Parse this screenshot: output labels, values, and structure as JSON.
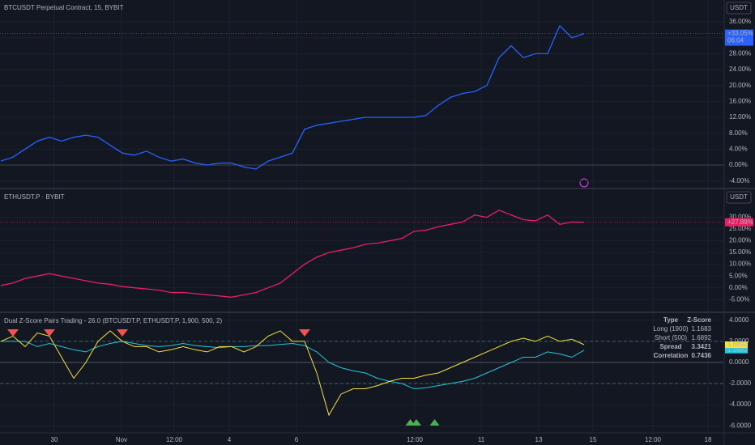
{
  "chart_data": [
    {
      "type": "line",
      "title": "BTCUSDT Perpetual Contract, 15, BYBIT",
      "currency": "USDT",
      "color": "#2962ff",
      "values": [
        1,
        2,
        4,
        6,
        7,
        6,
        7,
        7.5,
        7,
        5,
        3,
        2.5,
        3.5,
        2,
        1,
        1.5,
        0.5,
        0,
        0.5,
        0.5,
        -0.5,
        -1,
        1,
        2,
        3,
        9,
        10,
        10.5,
        11,
        11.5,
        12,
        12,
        12,
        12,
        12,
        12.5,
        15,
        17,
        18,
        18.5,
        20,
        27,
        30,
        27,
        28,
        28,
        35,
        32,
        33.05
      ],
      "last_label": "+33.05%",
      "countdown": "06:04",
      "ylim": [
        -5.7,
        41.5
      ],
      "yticks": [
        {
          "value": 36,
          "label": "36.00%"
        },
        {
          "value": 32,
          "label": "32.00%"
        },
        {
          "value": 28,
          "label": "28.00%"
        },
        {
          "value": 24,
          "label": "24.00%"
        },
        {
          "value": 20,
          "label": "20.00%"
        },
        {
          "value": 16,
          "label": "16.00%"
        },
        {
          "value": 12,
          "label": "12.00%"
        },
        {
          "value": 8,
          "label": "8.00%"
        },
        {
          "value": 4,
          "label": "4.00%"
        },
        {
          "value": 0,
          "label": "0.00%"
        },
        {
          "value": -4,
          "label": "-4.00%"
        }
      ],
      "grid": true
    },
    {
      "type": "line",
      "title": "ETHUSDT.P · BYBIT",
      "currency": "USDT",
      "color": "#e91e63",
      "values": [
        1,
        2,
        4,
        5,
        6,
        5,
        4,
        3,
        2,
        1.5,
        0.5,
        0,
        -0.5,
        -1,
        -2,
        -2,
        -2.5,
        -3,
        -3.5,
        -4,
        -3,
        -2,
        0,
        2,
        6,
        10,
        13,
        15,
        16,
        17,
        18.5,
        19,
        20,
        21,
        24,
        24.5,
        26,
        27,
        28,
        31,
        30,
        33,
        31,
        29,
        28.5,
        31,
        27,
        28,
        27.89
      ],
      "last_label": "+27.89%",
      "ylim": [
        -10.1,
        41.9
      ],
      "yticks": [
        {
          "value": 30,
          "label": "30.00%"
        },
        {
          "value": 25,
          "label": "25.00%"
        },
        {
          "value": 20,
          "label": "20.00%"
        },
        {
          "value": 15,
          "label": "15.00%"
        },
        {
          "value": 10,
          "label": "10.00%"
        },
        {
          "value": 5,
          "label": "5.00%"
        },
        {
          "value": 0,
          "label": "0.00%"
        },
        {
          "value": -5,
          "label": "-5.00%"
        }
      ],
      "grid": true
    },
    {
      "type": "zscore",
      "title": "Dual Z-Score Pairs Trading - 26.0 (BTCUSDT.P, ETHUSDT.P, 1,900, 500, 2)",
      "series": [
        {
          "name": "Long (1900)",
          "color": "#26c6da",
          "values": [
            2,
            2,
            2,
            1.5,
            1.8,
            1.5,
            1.2,
            1.0,
            1.5,
            1.8,
            2.0,
            1.8,
            1.6,
            1.5,
            1.6,
            1.8,
            1.6,
            1.5,
            1.4,
            1.5,
            1.5,
            1.6,
            1.6,
            1.7,
            1.8,
            1.6,
            1.0,
            0,
            -0.5,
            -0.8,
            -1.0,
            -1.5,
            -1.8,
            -2.0,
            -2.5,
            -2.4,
            -2.2,
            -2.0,
            -1.8,
            -1.5,
            -1.0,
            -0.5,
            0,
            0.5,
            0.5,
            1.0,
            0.8,
            0.5,
            1.1683
          ]
        },
        {
          "name": "Short (500)",
          "color": "#f5e23b",
          "values": [
            2,
            2.5,
            1.5,
            2.8,
            2.5,
            0.5,
            -1.5,
            0,
            2,
            3,
            2,
            1.5,
            1.5,
            1.0,
            1.2,
            1.5,
            1.2,
            1.0,
            1.5,
            1.5,
            1.0,
            1.5,
            2.5,
            3,
            2,
            2,
            -1,
            -5,
            -3,
            -2.5,
            -2.5,
            -2.2,
            -1.8,
            -1.5,
            -1.5,
            -1.2,
            -1.0,
            -0.5,
            0,
            0.5,
            1.0,
            1.5,
            2.0,
            2.3,
            2.0,
            2.5,
            2.0,
            2.2,
            1.6892
          ]
        }
      ],
      "hlines": [
        2,
        0,
        -2
      ],
      "sell_signals": [
        1,
        4,
        10,
        25
      ],
      "buy_signals": [
        33.7,
        34.2,
        35.7
      ],
      "table": {
        "header": [
          "Type",
          "Z-Score"
        ],
        "rows": [
          [
            "Spread",
            3.3421
          ],
          [
            "Correlation",
            0.7436
          ]
        ]
      },
      "ylim": [
        -6.68,
        4.68
      ],
      "yticks": [
        {
          "value": 4,
          "label": "4.0000"
        },
        {
          "value": 2,
          "label": "2.0000"
        },
        {
          "value": 0,
          "label": "0.0000"
        },
        {
          "value": -2,
          "label": "-2.0000"
        },
        {
          "value": -4,
          "label": "-4.0000"
        },
        {
          "value": -6,
          "label": "-6.0000"
        }
      ],
      "grid": true,
      "time_labels": [
        "30",
        "Nov",
        "12:00",
        "4",
        "6",
        "12:00",
        "11",
        "13",
        "15",
        "12:00",
        "18"
      ]
    }
  ]
}
